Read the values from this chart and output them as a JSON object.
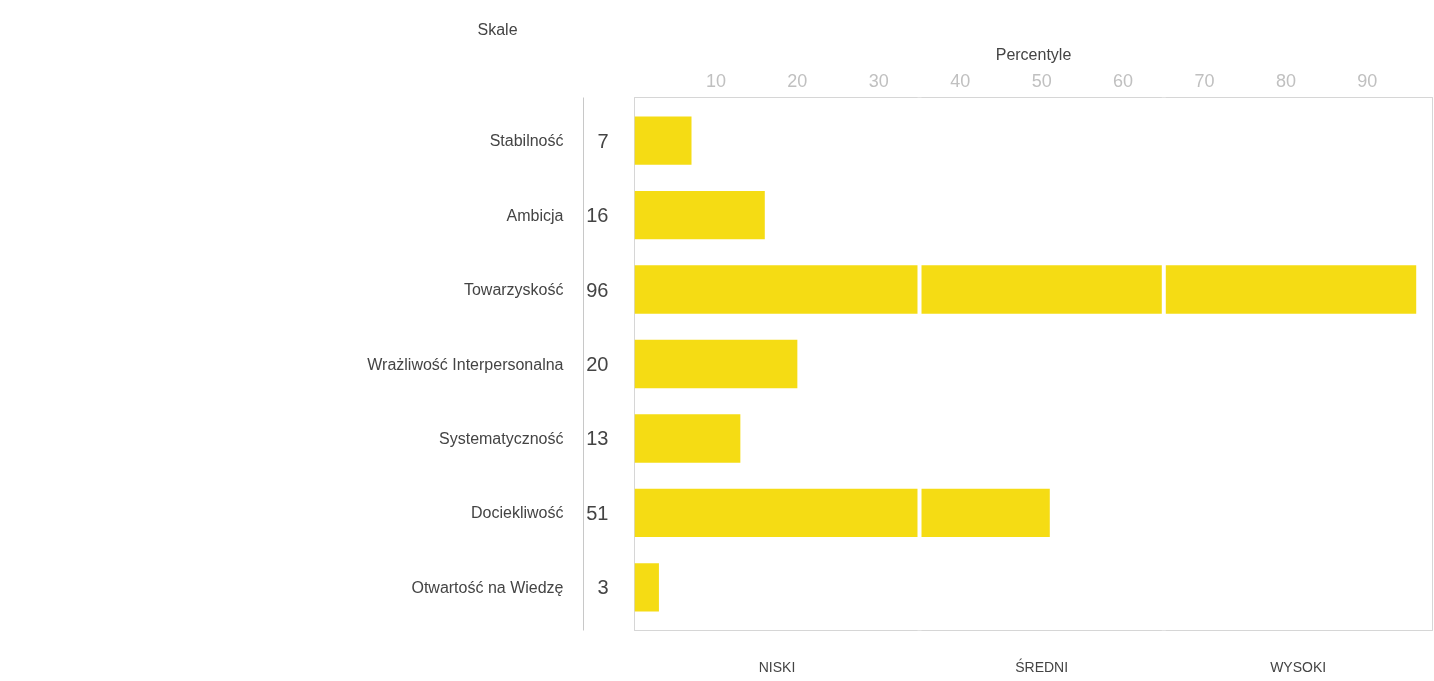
{
  "chart_data": {
    "type": "bar",
    "orientation": "horizontal",
    "xlabel": "Percentyle",
    "ylabel": "Skale",
    "categories": [
      "Stabilność",
      "Ambicja",
      "Towarzyskość",
      "Wrażliwość Interpersonalna",
      "Systematyczność",
      "Dociekliwość",
      "Otwartość na Wiedzę"
    ],
    "values": [
      7,
      16,
      96,
      20,
      13,
      51,
      3
    ],
    "color": "#f5dc14",
    "data_labels": true,
    "xlim": [
      0,
      98
    ],
    "xticks": [
      10,
      20,
      30,
      40,
      50,
      60,
      70,
      80,
      90
    ],
    "grid": false,
    "ref_lines": [
      {
        "axis": "x",
        "value": 35,
        "color": "#ffffff"
      },
      {
        "axis": "x",
        "value": 65,
        "color": "#ffffff"
      }
    ],
    "bands": [
      {
        "axis": "x",
        "from": 0,
        "to": 35,
        "label": "NISKI"
      },
      {
        "axis": "x",
        "from": 35,
        "to": 65,
        "label": "ŚREDNI"
      },
      {
        "axis": "x",
        "from": 65,
        "to": 98,
        "label": "WYSOKI"
      }
    ]
  }
}
